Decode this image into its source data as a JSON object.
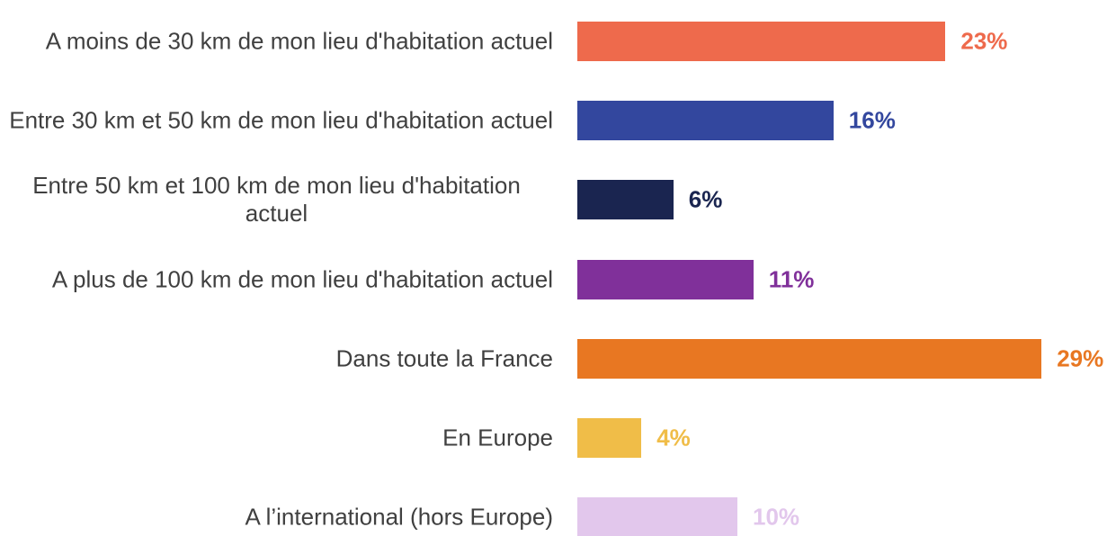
{
  "chart_data": {
    "type": "bar",
    "orientation": "horizontal",
    "categories": [
      "A moins de 30 km de mon lieu d'habitation actuel",
      "Entre 30 km et 50 km de mon lieu d'habitation actuel",
      "Entre 50 km et 100 km de mon lieu d'habitation actuel",
      "A plus de 100 km de mon lieu d'habitation actuel",
      "Dans toute la France",
      "En Europe",
      "A l’international (hors Europe)"
    ],
    "values": [
      23,
      16,
      6,
      11,
      29,
      4,
      10
    ],
    "value_labels": [
      "23%",
      "16%",
      "6%",
      "11%",
      "29%",
      "4%",
      "10%"
    ],
    "colors": [
      "#ee6a4c",
      "#33479e",
      "#1a2550",
      "#80309a",
      "#e87722",
      "#f0bd48",
      "#e2c7ec"
    ]
  }
}
